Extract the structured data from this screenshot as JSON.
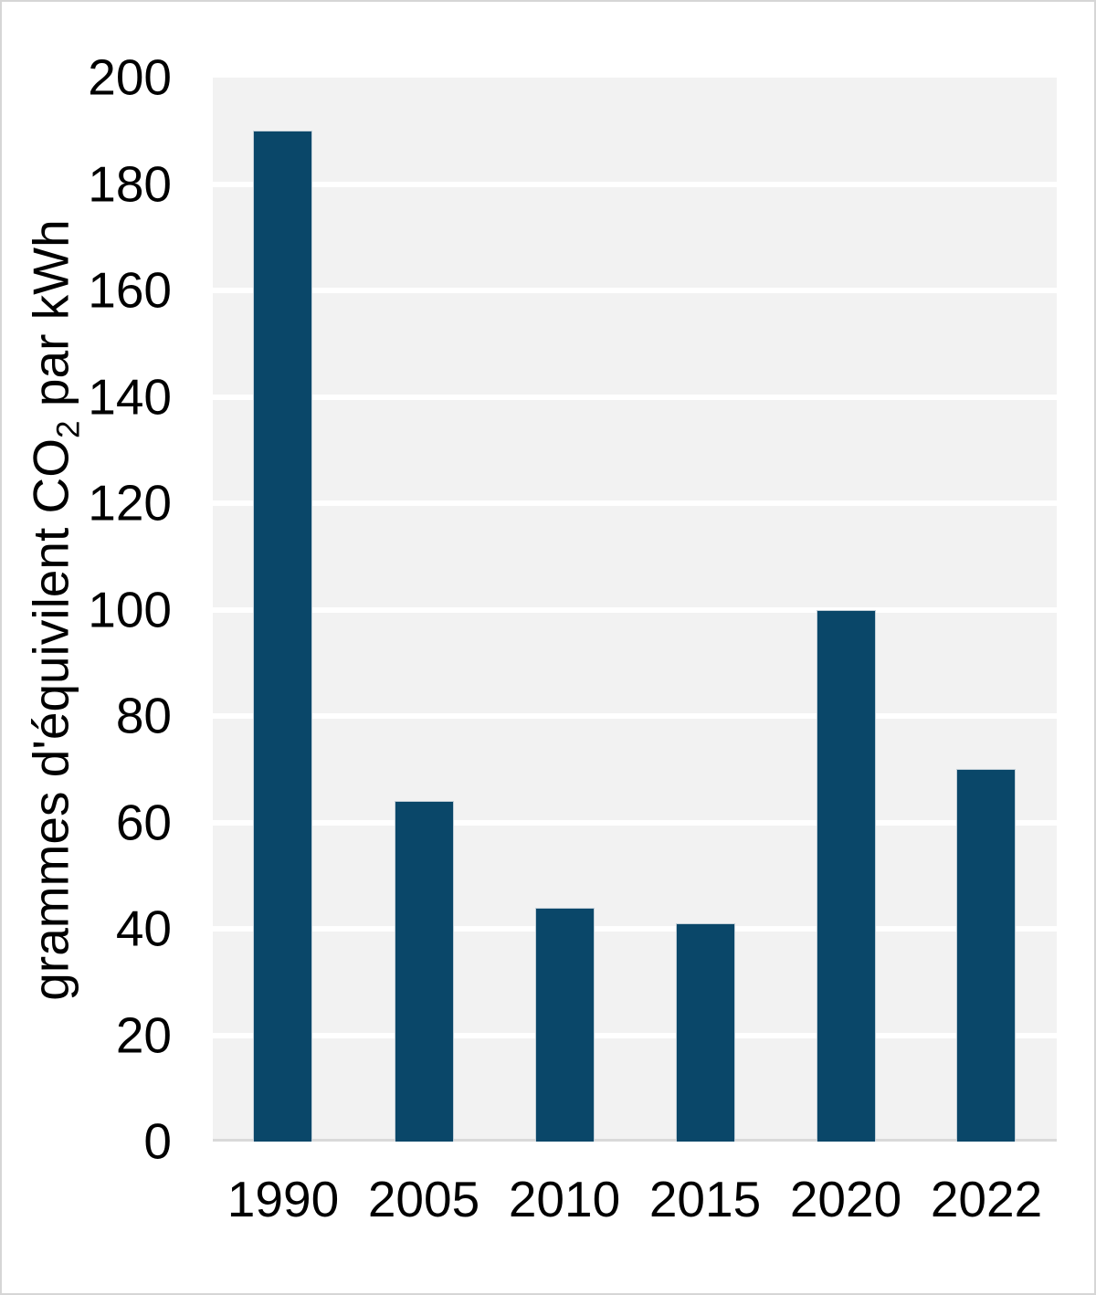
{
  "chart_data": {
    "type": "bar",
    "title": "",
    "categories": [
      "1990",
      "2005",
      "2010",
      "2015",
      "2020",
      "2022"
    ],
    "values": [
      190,
      64,
      44,
      41,
      100,
      70
    ],
    "xlabel": "",
    "ylabel": "grammes d'équivilent CO2 par kWh",
    "ylabel_parts": {
      "prefix": "grammes d'équivilent CO",
      "sub": "2",
      "suffix": " par kWh"
    },
    "ylim": [
      0,
      200
    ],
    "yticks": [
      0,
      20,
      40,
      60,
      80,
      100,
      120,
      140,
      160,
      180,
      200
    ],
    "grid": "horizontal",
    "legend": "none",
    "colors": {
      "bar": "#0a4769",
      "bar_edge": "#c2cfd8",
      "plot_background": "#f2f2f2",
      "gridline": "#ffffff",
      "axis_line": "#d9d9d9",
      "text": "#000000",
      "canvas_background": "#ffffff",
      "canvas_border": "#d6d6d6"
    }
  }
}
